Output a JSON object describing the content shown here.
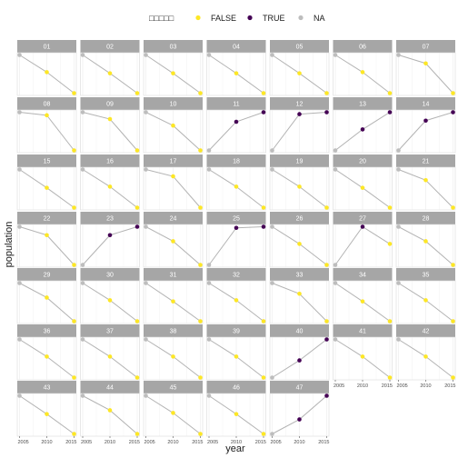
{
  "chart_data": {
    "type": "line",
    "subtype": "faceted-small-multiples",
    "title": "",
    "xlabel": "year",
    "ylabel": "population",
    "x_ticks": [
      "2005",
      "2010",
      "2015"
    ],
    "x": [
      2005,
      2010,
      2015
    ],
    "facet_columns": 7,
    "y_scale": "free (no tick labels shown)",
    "legend": {
      "placement": "top",
      "title": "□□□□□",
      "entries": [
        {
          "label": "FALSE",
          "color": "#fde725"
        },
        {
          "label": "TRUE",
          "color": "#440154"
        },
        {
          "label": "NA",
          "color": "#bdbdbd"
        }
      ]
    },
    "colors": {
      "strip_bg": "#a6a6a6",
      "line": "#b3b3b3",
      "grid": "#ebebeb",
      "panel_border": "#d9d9d9"
    },
    "panels": [
      {
        "label": "01",
        "values": [
          1.0,
          0.55,
          0.0
        ],
        "status": [
          "NA",
          "FALSE",
          "FALSE"
        ]
      },
      {
        "label": "02",
        "values": [
          1.0,
          0.52,
          0.0
        ],
        "status": [
          "NA",
          "FALSE",
          "FALSE"
        ]
      },
      {
        "label": "03",
        "values": [
          1.0,
          0.52,
          0.0
        ],
        "status": [
          "NA",
          "FALSE",
          "FALSE"
        ]
      },
      {
        "label": "04",
        "values": [
          1.0,
          0.52,
          0.0
        ],
        "status": [
          "NA",
          "FALSE",
          "FALSE"
        ]
      },
      {
        "label": "05",
        "values": [
          1.0,
          0.52,
          0.0
        ],
        "status": [
          "NA",
          "FALSE",
          "FALSE"
        ]
      },
      {
        "label": "06",
        "values": [
          1.0,
          0.55,
          0.0
        ],
        "status": [
          "NA",
          "FALSE",
          "FALSE"
        ]
      },
      {
        "label": "07",
        "values": [
          1.0,
          0.78,
          0.0
        ],
        "status": [
          "NA",
          "FALSE",
          "FALSE"
        ]
      },
      {
        "label": "08",
        "values": [
          1.0,
          0.92,
          0.0
        ],
        "status": [
          "NA",
          "FALSE",
          "FALSE"
        ]
      },
      {
        "label": "09",
        "values": [
          1.0,
          0.82,
          0.0
        ],
        "status": [
          "NA",
          "FALSE",
          "FALSE"
        ]
      },
      {
        "label": "10",
        "values": [
          1.0,
          0.65,
          0.0
        ],
        "status": [
          "NA",
          "FALSE",
          "FALSE"
        ]
      },
      {
        "label": "11",
        "values": [
          0.0,
          0.75,
          1.0
        ],
        "status": [
          "NA",
          "TRUE",
          "TRUE"
        ]
      },
      {
        "label": "12",
        "values": [
          0.0,
          0.95,
          1.0
        ],
        "status": [
          "NA",
          "TRUE",
          "TRUE"
        ]
      },
      {
        "label": "13",
        "values": [
          0.0,
          0.55,
          1.0
        ],
        "status": [
          "NA",
          "TRUE",
          "TRUE"
        ]
      },
      {
        "label": "14",
        "values": [
          0.0,
          0.78,
          1.0
        ],
        "status": [
          "NA",
          "TRUE",
          "TRUE"
        ]
      },
      {
        "label": "15",
        "values": [
          1.0,
          0.52,
          0.0
        ],
        "status": [
          "NA",
          "FALSE",
          "FALSE"
        ]
      },
      {
        "label": "16",
        "values": [
          1.0,
          0.55,
          0.0
        ],
        "status": [
          "NA",
          "FALSE",
          "FALSE"
        ]
      },
      {
        "label": "17",
        "values": [
          1.0,
          0.82,
          0.0
        ],
        "status": [
          "NA",
          "FALSE",
          "FALSE"
        ]
      },
      {
        "label": "18",
        "values": [
          1.0,
          0.55,
          0.0
        ],
        "status": [
          "NA",
          "FALSE",
          "FALSE"
        ]
      },
      {
        "label": "19",
        "values": [
          1.0,
          0.55,
          0.0
        ],
        "status": [
          "NA",
          "FALSE",
          "FALSE"
        ]
      },
      {
        "label": "20",
        "values": [
          1.0,
          0.52,
          0.0
        ],
        "status": [
          "NA",
          "FALSE",
          "FALSE"
        ]
      },
      {
        "label": "21",
        "values": [
          1.0,
          0.72,
          0.0
        ],
        "status": [
          "NA",
          "FALSE",
          "FALSE"
        ]
      },
      {
        "label": "22",
        "values": [
          1.0,
          0.78,
          0.0
        ],
        "status": [
          "NA",
          "FALSE",
          "FALSE"
        ]
      },
      {
        "label": "23",
        "values": [
          0.0,
          0.78,
          1.0
        ],
        "status": [
          "NA",
          "TRUE",
          "TRUE"
        ]
      },
      {
        "label": "24",
        "values": [
          1.0,
          0.62,
          0.0
        ],
        "status": [
          "NA",
          "FALSE",
          "FALSE"
        ]
      },
      {
        "label": "25",
        "values": [
          0.0,
          0.97,
          1.0
        ],
        "status": [
          "NA",
          "TRUE",
          "TRUE"
        ]
      },
      {
        "label": "26",
        "values": [
          1.0,
          0.55,
          0.0
        ],
        "status": [
          "NA",
          "FALSE",
          "FALSE"
        ]
      },
      {
        "label": "27",
        "values": [
          0.0,
          1.0,
          0.55
        ],
        "status": [
          "NA",
          "TRUE",
          "FALSE"
        ]
      },
      {
        "label": "28",
        "values": [
          1.0,
          0.62,
          0.0
        ],
        "status": [
          "NA",
          "FALSE",
          "FALSE"
        ]
      },
      {
        "label": "29",
        "values": [
          1.0,
          0.62,
          0.0
        ],
        "status": [
          "NA",
          "FALSE",
          "FALSE"
        ]
      },
      {
        "label": "30",
        "values": [
          1.0,
          0.55,
          0.0
        ],
        "status": [
          "NA",
          "FALSE",
          "FALSE"
        ]
      },
      {
        "label": "31",
        "values": [
          1.0,
          0.52,
          0.0
        ],
        "status": [
          "NA",
          "FALSE",
          "FALSE"
        ]
      },
      {
        "label": "32",
        "values": [
          1.0,
          0.55,
          0.0
        ],
        "status": [
          "NA",
          "FALSE",
          "FALSE"
        ]
      },
      {
        "label": "33",
        "values": [
          1.0,
          0.72,
          0.0
        ],
        "status": [
          "NA",
          "FALSE",
          "FALSE"
        ]
      },
      {
        "label": "34",
        "values": [
          1.0,
          0.52,
          0.0
        ],
        "status": [
          "NA",
          "FALSE",
          "FALSE"
        ]
      },
      {
        "label": "35",
        "values": [
          1.0,
          0.55,
          0.0
        ],
        "status": [
          "NA",
          "FALSE",
          "FALSE"
        ]
      },
      {
        "label": "36",
        "values": [
          1.0,
          0.55,
          0.0
        ],
        "status": [
          "NA",
          "FALSE",
          "FALSE"
        ]
      },
      {
        "label": "37",
        "values": [
          1.0,
          0.55,
          0.0
        ],
        "status": [
          "NA",
          "FALSE",
          "FALSE"
        ]
      },
      {
        "label": "38",
        "values": [
          1.0,
          0.55,
          0.0
        ],
        "status": [
          "NA",
          "FALSE",
          "FALSE"
        ]
      },
      {
        "label": "39",
        "values": [
          1.0,
          0.55,
          0.0
        ],
        "status": [
          "NA",
          "FALSE",
          "FALSE"
        ]
      },
      {
        "label": "40",
        "values": [
          0.0,
          0.45,
          1.0
        ],
        "status": [
          "NA",
          "TRUE",
          "TRUE"
        ]
      },
      {
        "label": "41",
        "values": [
          1.0,
          0.55,
          0.0
        ],
        "status": [
          "NA",
          "FALSE",
          "FALSE"
        ]
      },
      {
        "label": "42",
        "values": [
          1.0,
          0.55,
          0.0
        ],
        "status": [
          "NA",
          "FALSE",
          "FALSE"
        ]
      },
      {
        "label": "43",
        "values": [
          1.0,
          0.52,
          0.0
        ],
        "status": [
          "NA",
          "FALSE",
          "FALSE"
        ]
      },
      {
        "label": "44",
        "values": [
          1.0,
          0.62,
          0.0
        ],
        "status": [
          "NA",
          "FALSE",
          "FALSE"
        ]
      },
      {
        "label": "45",
        "values": [
          1.0,
          0.55,
          0.0
        ],
        "status": [
          "NA",
          "FALSE",
          "FALSE"
        ]
      },
      {
        "label": "46",
        "values": [
          1.0,
          0.52,
          0.0
        ],
        "status": [
          "NA",
          "FALSE",
          "FALSE"
        ]
      },
      {
        "label": "47",
        "values": [
          0.0,
          0.38,
          1.0
        ],
        "status": [
          "NA",
          "TRUE",
          "TRUE"
        ]
      }
    ]
  }
}
